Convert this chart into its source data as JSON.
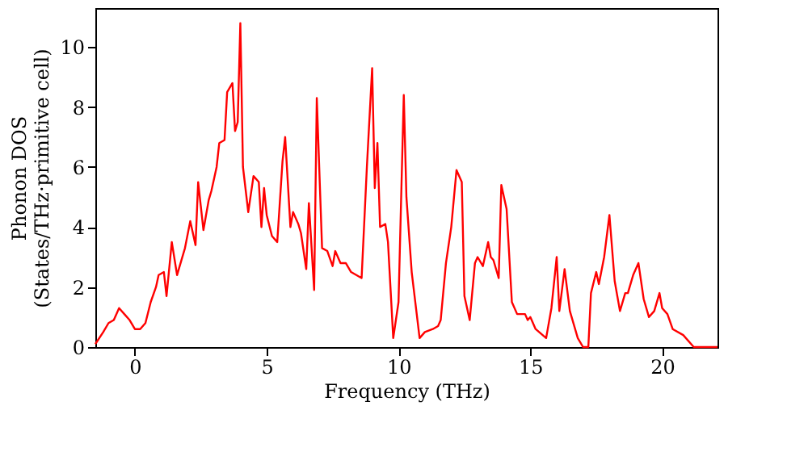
{
  "chart_data": {
    "type": "line",
    "xlabel": "Frequency (THz)",
    "ylabel": "Phonon DOS\n(States/THz·primitive cell)",
    "xlim": [
      -1.5,
      22.1
    ],
    "ylim": [
      0,
      11.3
    ],
    "xticks": [
      0,
      5,
      10,
      15,
      20
    ],
    "yticks": [
      0,
      2,
      4,
      6,
      8,
      10
    ],
    "grid": false,
    "line_style": "solid",
    "marker": "none",
    "series": [
      {
        "color": "#ff0000",
        "x": [
          -1.5,
          -1.2,
          -1.0,
          -0.8,
          -0.6,
          -0.4,
          -0.2,
          0.0,
          0.2,
          0.4,
          0.6,
          0.8,
          0.9,
          1.1,
          1.2,
          1.4,
          1.6,
          1.7,
          1.9,
          2.1,
          2.3,
          2.4,
          2.6,
          2.8,
          2.9,
          3.1,
          3.2,
          3.4,
          3.5,
          3.7,
          3.8,
          3.9,
          4.0,
          4.1,
          4.3,
          4.5,
          4.7,
          4.8,
          4.9,
          5.0,
          5.2,
          5.4,
          5.6,
          5.7,
          5.9,
          6.0,
          6.2,
          6.3,
          6.5,
          6.6,
          6.8,
          6.9,
          7.1,
          7.3,
          7.5,
          7.6,
          7.8,
          8.0,
          8.2,
          8.4,
          8.6,
          8.8,
          9.0,
          9.1,
          9.2,
          9.3,
          9.5,
          9.6,
          9.8,
          10.0,
          10.2,
          10.3,
          10.5,
          10.8,
          11.0,
          11.3,
          11.5,
          11.6,
          11.8,
          12.0,
          12.2,
          12.4,
          12.5,
          12.7,
          12.9,
          13.0,
          13.2,
          13.4,
          13.5,
          13.6,
          13.8,
          13.9,
          14.1,
          14.3,
          14.5,
          14.8,
          14.9,
          15.0,
          15.2,
          15.6,
          15.8,
          16.0,
          16.1,
          16.3,
          16.5,
          16.8,
          17.0,
          17.2,
          17.3,
          17.5,
          17.6,
          17.8,
          18.0,
          18.2,
          18.4,
          18.6,
          18.7,
          18.9,
          19.1,
          19.3,
          19.5,
          19.7,
          19.9,
          20.0,
          20.2,
          20.4,
          20.8,
          21.2,
          22.1
        ],
        "values": [
          0.1,
          0.5,
          0.8,
          0.9,
          1.3,
          1.1,
          0.9,
          0.6,
          0.6,
          0.8,
          1.5,
          2.0,
          2.4,
          2.5,
          1.7,
          3.5,
          2.4,
          2.7,
          3.3,
          4.2,
          3.4,
          5.5,
          3.9,
          4.9,
          5.2,
          6.0,
          6.8,
          6.9,
          8.5,
          8.8,
          7.2,
          7.5,
          10.8,
          6.0,
          4.5,
          5.7,
          5.5,
          4.0,
          5.3,
          4.4,
          3.7,
          3.5,
          6.2,
          7.0,
          4.0,
          4.5,
          4.1,
          3.8,
          2.6,
          4.8,
          1.9,
          8.3,
          3.3,
          3.2,
          2.7,
          3.2,
          2.8,
          2.8,
          2.5,
          2.4,
          2.3,
          6.0,
          9.3,
          5.3,
          6.8,
          4.0,
          4.1,
          3.5,
          0.3,
          1.5,
          8.4,
          5.0,
          2.5,
          0.3,
          0.5,
          0.6,
          0.7,
          0.9,
          2.8,
          4.0,
          5.9,
          5.5,
          1.7,
          0.9,
          2.8,
          3.0,
          2.7,
          3.5,
          3.0,
          2.9,
          2.3,
          5.4,
          4.6,
          1.5,
          1.1,
          1.1,
          0.9,
          1.0,
          0.6,
          0.3,
          1.3,
          3.0,
          1.2,
          2.6,
          1.2,
          0.3,
          0.0,
          0.0,
          1.8,
          2.5,
          2.1,
          3.0,
          4.4,
          2.2,
          1.2,
          1.8,
          1.8,
          2.4,
          2.8,
          1.6,
          1.0,
          1.2,
          1.8,
          1.3,
          1.1,
          0.6,
          0.4,
          0.0,
          0.0
        ]
      }
    ]
  }
}
